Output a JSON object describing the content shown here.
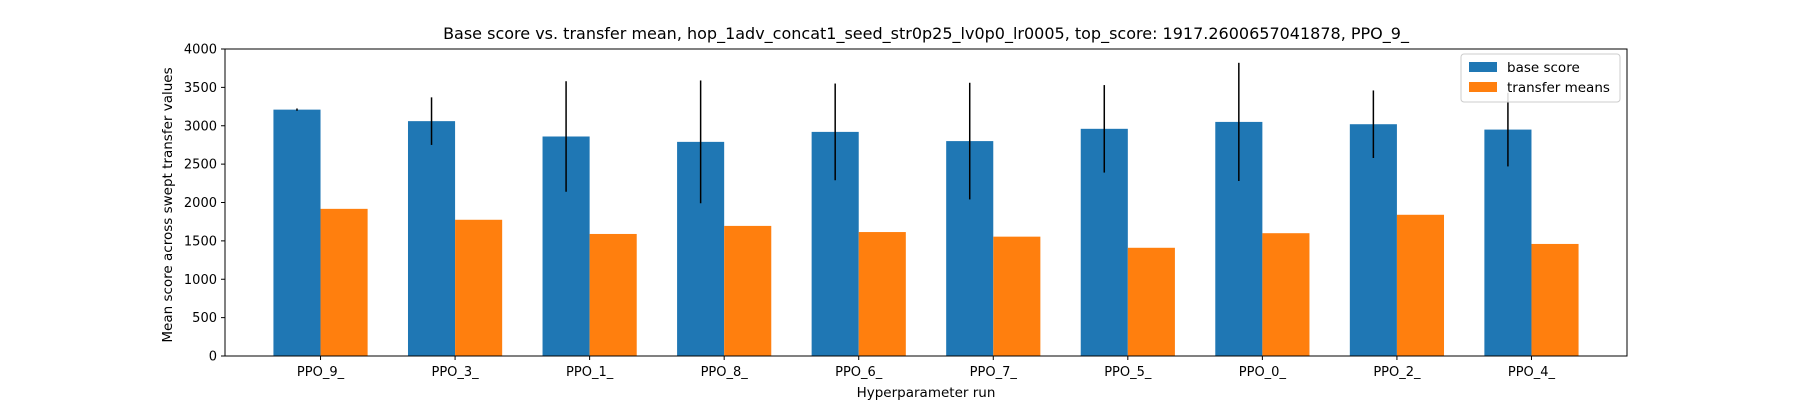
{
  "chart_data": {
    "type": "bar",
    "title": "Base score vs. transfer mean, hop_1adv_concat1_seed_str0p25_lv0p0_lr0005, top_score: 1917.2600657041878, PPO_9_",
    "xlabel": "Hyperparameter run",
    "ylabel": "Mean score across swept transfer values",
    "ylim": [
      0,
      4000
    ],
    "yticks": [
      0,
      500,
      1000,
      1500,
      2000,
      2500,
      3000,
      3500,
      4000
    ],
    "categories": [
      "PPO_9_",
      "PPO_3_",
      "PPO_1_",
      "PPO_8_",
      "PPO_6_",
      "PPO_7_",
      "PPO_5_",
      "PPO_0_",
      "PPO_2_",
      "PPO_4_"
    ],
    "series": [
      {
        "name": "base score",
        "color": "#1f77b4",
        "values": [
          3210,
          3060,
          2860,
          2790,
          2920,
          2800,
          2960,
          3050,
          3020,
          2950
        ],
        "error": [
          15,
          310,
          720,
          800,
          630,
          760,
          570,
          770,
          440,
          480
        ]
      },
      {
        "name": "transfer means",
        "color": "#ff7f0e",
        "values": [
          1917.26,
          1775,
          1590,
          1695,
          1615,
          1555,
          1410,
          1600,
          1840,
          1460
        ]
      }
    ],
    "legend": "top-right",
    "grid": false
  }
}
